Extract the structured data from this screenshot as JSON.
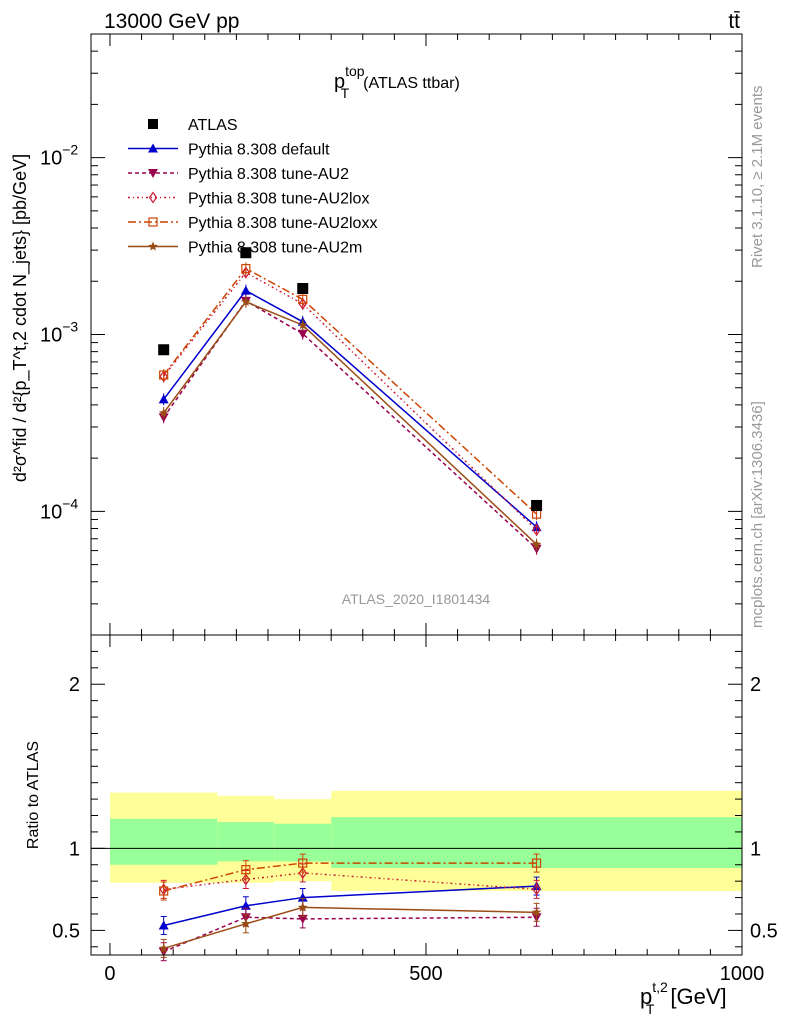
{
  "header": {
    "left_label": "13000 GeV pp",
    "right_label": "tt̄"
  },
  "side_labels": {
    "rivet": "Rivet 3.1.10, ≥ 2.1M events",
    "mcplots": "mcplots.cern.ch [arXiv:1306.3436]"
  },
  "chart_data": {
    "type": "scatter",
    "title_main": "p",
    "title_sup": "top",
    "title_sub": "T",
    "title_suffix": "(ATLAS ttbar)",
    "watermark": "ATLAS_2020_I1801434",
    "ylabel_main": "d²σ^fid / d²{p_T^t,2 cdot N_jets} [pb/GeV]",
    "ylabel_ratio": "Ratio to ATLAS",
    "xlabel_main": "p",
    "xlabel_sup": "t,2",
    "xlabel_sub": "T",
    "xlabel_unit": "[GeV]",
    "xlim": [
      -30,
      1000
    ],
    "ylim_main": [
      2e-05,
      0.05
    ],
    "ylim_ratio": [
      0.35,
      2.3
    ],
    "x_ticks": [
      0,
      500,
      1000
    ],
    "x_tick_labels": [
      "0",
      "500",
      "1000"
    ],
    "y_main_labels": [
      {
        "value": 0.01,
        "base": "10",
        "exp": "−2"
      },
      {
        "value": 0.001,
        "base": "10",
        "exp": "−3"
      },
      {
        "value": 0.0001,
        "base": "10",
        "exp": "−4"
      }
    ],
    "y_ratio_ticks": [
      0.5,
      1,
      2
    ],
    "y_ratio_labels": [
      "0.5",
      "1",
      "2"
    ],
    "x": [
      85,
      215,
      305,
      675
    ],
    "data": {
      "name": "ATLAS",
      "values": [
        0.00082,
        0.0029,
        0.00182,
        0.000108
      ],
      "color": "#000000"
    },
    "band_edges": [
      0,
      170,
      260,
      350,
      1000
    ],
    "band_inner": [
      [
        0.9,
        1.18
      ],
      [
        0.92,
        1.16
      ],
      [
        0.92,
        1.15
      ],
      [
        0.88,
        1.19
      ]
    ],
    "band_outer": [
      [
        0.79,
        1.34
      ],
      [
        0.79,
        1.32
      ],
      [
        0.8,
        1.3
      ],
      [
        0.74,
        1.35
      ]
    ],
    "series": [
      {
        "name": "Pythia 8.308 default",
        "color": "#0000cc",
        "marker": "triangle-up",
        "dash": "",
        "values": [
          0.00043,
          0.00177,
          0.00118,
          8.15e-05
        ],
        "ratio": [
          0.53,
          0.65,
          0.7,
          0.77
        ]
      },
      {
        "name": "Pythia 8.308 tune-AU2",
        "color": "#99004d",
        "marker": "triangle-down",
        "dash": "4,3",
        "values": [
          0.00034,
          0.00155,
          0.00101,
          6.15e-05
        ],
        "ratio": [
          0.37,
          0.58,
          0.57,
          0.58
        ]
      },
      {
        "name": "Pythia 8.308 tune-AU2lox",
        "color": "#cc1a33",
        "marker": "diamond-open",
        "dash": "2,3,1,3",
        "values": [
          0.00058,
          0.00224,
          0.00149,
          7.85e-05
        ],
        "ratio": [
          0.75,
          0.81,
          0.85,
          0.75
        ]
      },
      {
        "name": "Pythia 8.308 tune-AU2loxx",
        "color": "#cc4400",
        "marker": "square-open",
        "dash": "8,3,2,3",
        "values": [
          0.00059,
          0.00236,
          0.00158,
          9.65e-05
        ],
        "ratio": [
          0.74,
          0.87,
          0.91,
          0.91
        ]
      },
      {
        "name": "Pythia 8.308 tune-AU2m",
        "color": "#994d14",
        "marker": "star",
        "dash": "",
        "values": [
          0.00036,
          0.00153,
          0.00113,
          6.5e-05
        ],
        "ratio": [
          0.39,
          0.54,
          0.64,
          0.61
        ]
      }
    ],
    "ratio_xstops": [
      85,
      680
    ]
  }
}
